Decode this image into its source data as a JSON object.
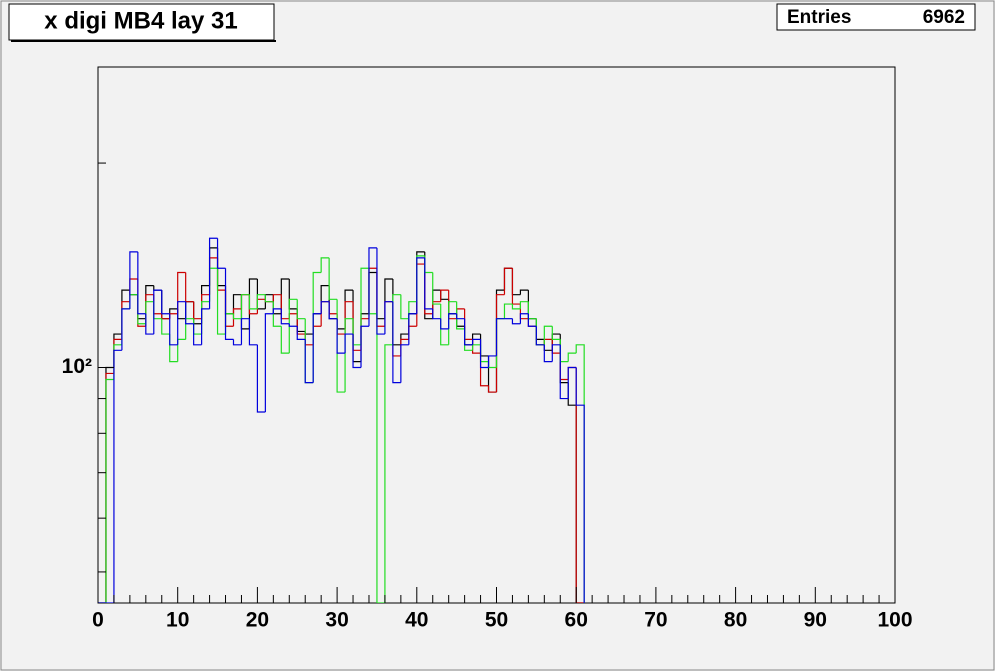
{
  "chart_data": {
    "type": "histogram",
    "title": "x digi MB4 lay 31",
    "stats": {
      "label": "Entries",
      "value": 6962
    },
    "bins": [
      0,
      1,
      2,
      3,
      4,
      5,
      6,
      7,
      8,
      9,
      10,
      11,
      12,
      13,
      14,
      15,
      16,
      17,
      18,
      19,
      20,
      21,
      22,
      23,
      24,
      25,
      26,
      27,
      28,
      29,
      30,
      31,
      32,
      33,
      34,
      35,
      36,
      37,
      38,
      39,
      40,
      41,
      42,
      43,
      44,
      45,
      46,
      47,
      48,
      49,
      50,
      51,
      52,
      53,
      54,
      55,
      56,
      57,
      58,
      59,
      60,
      61
    ],
    "series": [
      {
        "color": "#000000",
        "values": [
          0,
          100,
          112,
          130,
          128,
          118,
          132,
          130,
          118,
          122,
          118,
          125,
          116,
          132,
          150,
          132,
          120,
          128,
          114,
          135,
          122,
          128,
          120,
          135,
          122,
          113,
          112,
          120,
          132,
          118,
          114,
          130,
          102,
          120,
          138,
          118,
          135,
          108,
          112,
          120,
          148,
          118,
          130,
          126,
          120,
          115,
          108,
          112,
          104,
          92,
          130,
          140,
          128,
          130,
          118,
          110,
          106,
          112,
          95,
          88,
          0
        ]
      },
      {
        "color": "#cc0000",
        "values": [
          0,
          98,
          110,
          125,
          135,
          115,
          128,
          120,
          118,
          120,
          138,
          125,
          118,
          128,
          145,
          130,
          115,
          122,
          128,
          120,
          126,
          125,
          128,
          118,
          120,
          112,
          108,
          115,
          125,
          120,
          112,
          125,
          106,
          118,
          140,
          115,
          125,
          104,
          110,
          115,
          142,
          120,
          125,
          130,
          118,
          122,
          110,
          105,
          94,
          92,
          128,
          140,
          124,
          118,
          115,
          108,
          110,
          105,
          96,
          100,
          0
        ]
      },
      {
        "color": "#22dd22",
        "values": [
          0,
          96,
          108,
          122,
          128,
          116,
          125,
          118,
          112,
          102,
          110,
          118,
          112,
          125,
          140,
          112,
          120,
          118,
          128,
          122,
          128,
          125,
          115,
          105,
          126,
          118,
          95,
          138,
          145,
          126,
          92,
          118,
          108,
          140,
          120,
          0,
          108,
          128,
          118,
          125,
          146,
          138,
          124,
          108,
          125,
          114,
          106,
          108,
          102,
          100,
          118,
          124,
          122,
          125,
          118,
          108,
          115,
          110,
          102,
          105,
          108
        ]
      },
      {
        "color": "#0000dd",
        "values": [
          0,
          0,
          106,
          122,
          148,
          120,
          112,
          130,
          120,
          108,
          125,
          116,
          108,
          122,
          155,
          140,
          110,
          108,
          118,
          108,
          86,
          120,
          122,
          116,
          115,
          110,
          95,
          120,
          125,
          118,
          105,
          112,
          100,
          115,
          150,
          112,
          125,
          95,
          108,
          120,
          145,
          122,
          118,
          114,
          120,
          118,
          108,
          110,
          100,
          104,
          118,
          118,
          116,
          120,
          115,
          108,
          102,
          108,
          90,
          100,
          88
        ]
      }
    ],
    "xlim": [
      0,
      100
    ],
    "xticks": [
      0,
      10,
      20,
      30,
      40,
      50,
      60,
      70,
      80,
      90,
      100
    ],
    "xminor": [
      2,
      4,
      6,
      8,
      12,
      14,
      16,
      18,
      22,
      24,
      26,
      28,
      32,
      34,
      36,
      38,
      42,
      44,
      46,
      48,
      52,
      54,
      56,
      58,
      62,
      64,
      66,
      68,
      72,
      74,
      76,
      78,
      82,
      84,
      86,
      88,
      92,
      94,
      96,
      98
    ],
    "ylim": [
      45,
      277
    ],
    "log_y": true,
    "yticks": [
      {
        "value": 100,
        "label": "10²"
      }
    ],
    "yminor": [
      50,
      60,
      70,
      80,
      90,
      200
    ]
  }
}
